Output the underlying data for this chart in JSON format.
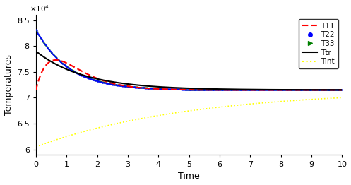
{
  "title": "",
  "xlabel": "Time",
  "ylabel": "Temperatures",
  "xlim": [
    0,
    10
  ],
  "ylim": [
    59000.0,
    86000.0
  ],
  "yticks": [
    60000.0,
    65000.0,
    70000.0,
    75000.0,
    80000.0,
    85000.0
  ],
  "ytick_labels": [
    "6",
    "6.5",
    "7",
    "7.5",
    "8",
    "8.5"
  ],
  "xticks": [
    0,
    1,
    2,
    3,
    4,
    5,
    6,
    7,
    8,
    9,
    10
  ],
  "T_eq": 71500,
  "T11_init": 71500,
  "T11_peak": 77300,
  "T11_peak_t": 0.65,
  "T22_init": 83200,
  "T33_init": 83200,
  "Ttr_init": 79000,
  "Tint_init": 60500,
  "tau_T22": 1.05,
  "tau_T33": 1.08,
  "tau_Ttr": 1.6,
  "tau_Tint": 5.0,
  "T11_color": "red",
  "T22_color": "blue",
  "T33_color": "green",
  "Ttr_color": "black",
  "Tint_color": "yellow",
  "n_points": 3000,
  "scatter_step": 6
}
